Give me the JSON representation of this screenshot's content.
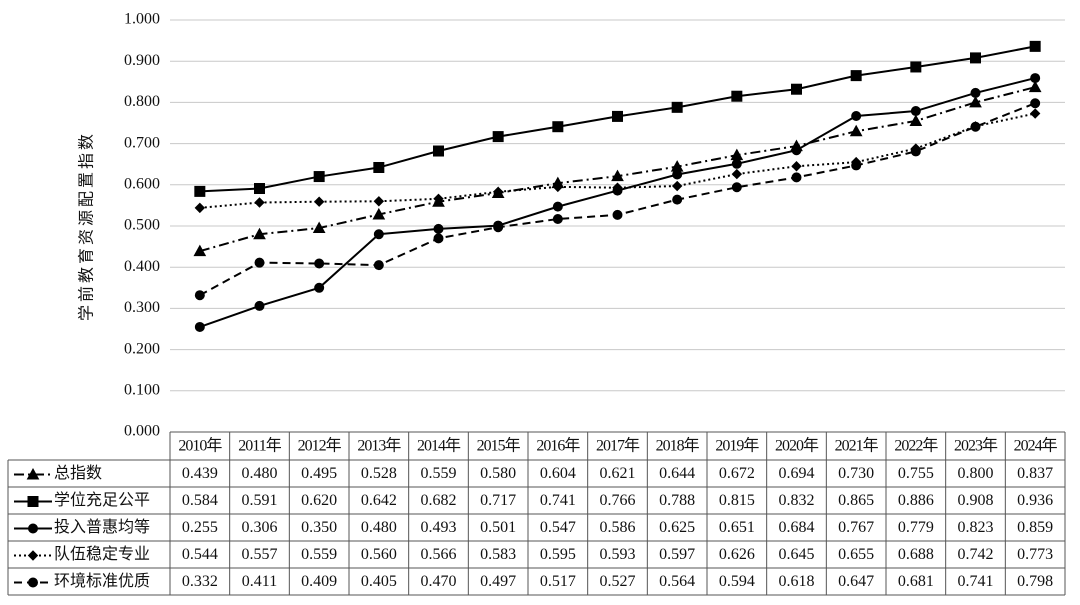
{
  "chart_data": {
    "type": "line",
    "y_label": "学前教育资源配置指数",
    "categories": [
      "2010年",
      "2011年",
      "2012年",
      "2013年",
      "2014年",
      "2015年",
      "2016年",
      "2017年",
      "2018年",
      "2019年",
      "2020年",
      "2021年",
      "2022年",
      "2023年",
      "2024年"
    ],
    "ylim": [
      0,
      1
    ],
    "yticks": [
      {
        "value": 0,
        "label": "0.000"
      },
      {
        "value": 0.1,
        "label": "0.100"
      },
      {
        "value": 0.2,
        "label": "0.200"
      },
      {
        "value": 0.3,
        "label": "0.300"
      },
      {
        "value": 0.4,
        "label": "0.400"
      },
      {
        "value": 0.5,
        "label": "0.500"
      },
      {
        "value": 0.6,
        "label": "0.600"
      },
      {
        "value": 0.7,
        "label": "0.700"
      },
      {
        "value": 0.8,
        "label": "0.800"
      },
      {
        "value": 0.9,
        "label": "0.900"
      },
      {
        "value": 1,
        "label": "1.000"
      }
    ],
    "grid": true,
    "data_table": true,
    "series": [
      {
        "name": "总指数",
        "color": "#000000",
        "dash": "dashdot",
        "marker": "triangle",
        "values": [
          0.439,
          0.48,
          0.495,
          0.528,
          0.559,
          0.58,
          0.604,
          0.621,
          0.644,
          0.672,
          0.694,
          0.73,
          0.755,
          0.8,
          0.837
        ],
        "value_labels": [
          "0.439",
          "0.480",
          "0.495",
          "0.528",
          "0.559",
          "0.580",
          "0.604",
          "0.621",
          "0.644",
          "0.672",
          "0.694",
          "0.730",
          "0.755",
          "0.800",
          "0.837"
        ]
      },
      {
        "name": "学位充足公平",
        "color": "#000000",
        "dash": "solid",
        "marker": "square",
        "values": [
          0.584,
          0.591,
          0.62,
          0.642,
          0.682,
          0.717,
          0.741,
          0.766,
          0.788,
          0.815,
          0.832,
          0.865,
          0.886,
          0.908,
          0.936
        ],
        "value_labels": [
          "0.584",
          "0.591",
          "0.620",
          "0.642",
          "0.682",
          "0.717",
          "0.741",
          "0.766",
          "0.788",
          "0.815",
          "0.832",
          "0.865",
          "0.886",
          "0.908",
          "0.936"
        ]
      },
      {
        "name": "投入普惠均等",
        "color": "#000000",
        "dash": "solid",
        "marker": "circle",
        "values": [
          0.255,
          0.306,
          0.35,
          0.48,
          0.493,
          0.501,
          0.547,
          0.586,
          0.625,
          0.651,
          0.684,
          0.767,
          0.779,
          0.823,
          0.859
        ],
        "value_labels": [
          "0.255",
          "0.306",
          "0.350",
          "0.480",
          "0.493",
          "0.501",
          "0.547",
          "0.586",
          "0.625",
          "0.651",
          "0.684",
          "0.767",
          "0.779",
          "0.823",
          "0.859"
        ]
      },
      {
        "name": "队伍稳定专业",
        "color": "#000000",
        "dash": "dotted",
        "marker": "diamond",
        "values": [
          0.544,
          0.557,
          0.559,
          0.56,
          0.566,
          0.583,
          0.595,
          0.593,
          0.597,
          0.626,
          0.645,
          0.655,
          0.688,
          0.742,
          0.773
        ],
        "value_labels": [
          "0.544",
          "0.557",
          "0.559",
          "0.560",
          "0.566",
          "0.583",
          "0.595",
          "0.593",
          "0.597",
          "0.626",
          "0.645",
          "0.655",
          "0.688",
          "0.742",
          "0.773"
        ]
      },
      {
        "name": "环境标准优质",
        "color": "#000000",
        "dash": "dashed",
        "marker": "circle",
        "values": [
          0.332,
          0.411,
          0.409,
          0.405,
          0.47,
          0.497,
          0.517,
          0.527,
          0.564,
          0.594,
          0.618,
          0.647,
          0.681,
          0.741,
          0.798
        ],
        "value_labels": [
          "0.332",
          "0.411",
          "0.409",
          "0.405",
          "0.470",
          "0.497",
          "0.517",
          "0.527",
          "0.564",
          "0.594",
          "0.618",
          "0.647",
          "0.681",
          "0.741",
          "0.798"
        ]
      }
    ]
  }
}
